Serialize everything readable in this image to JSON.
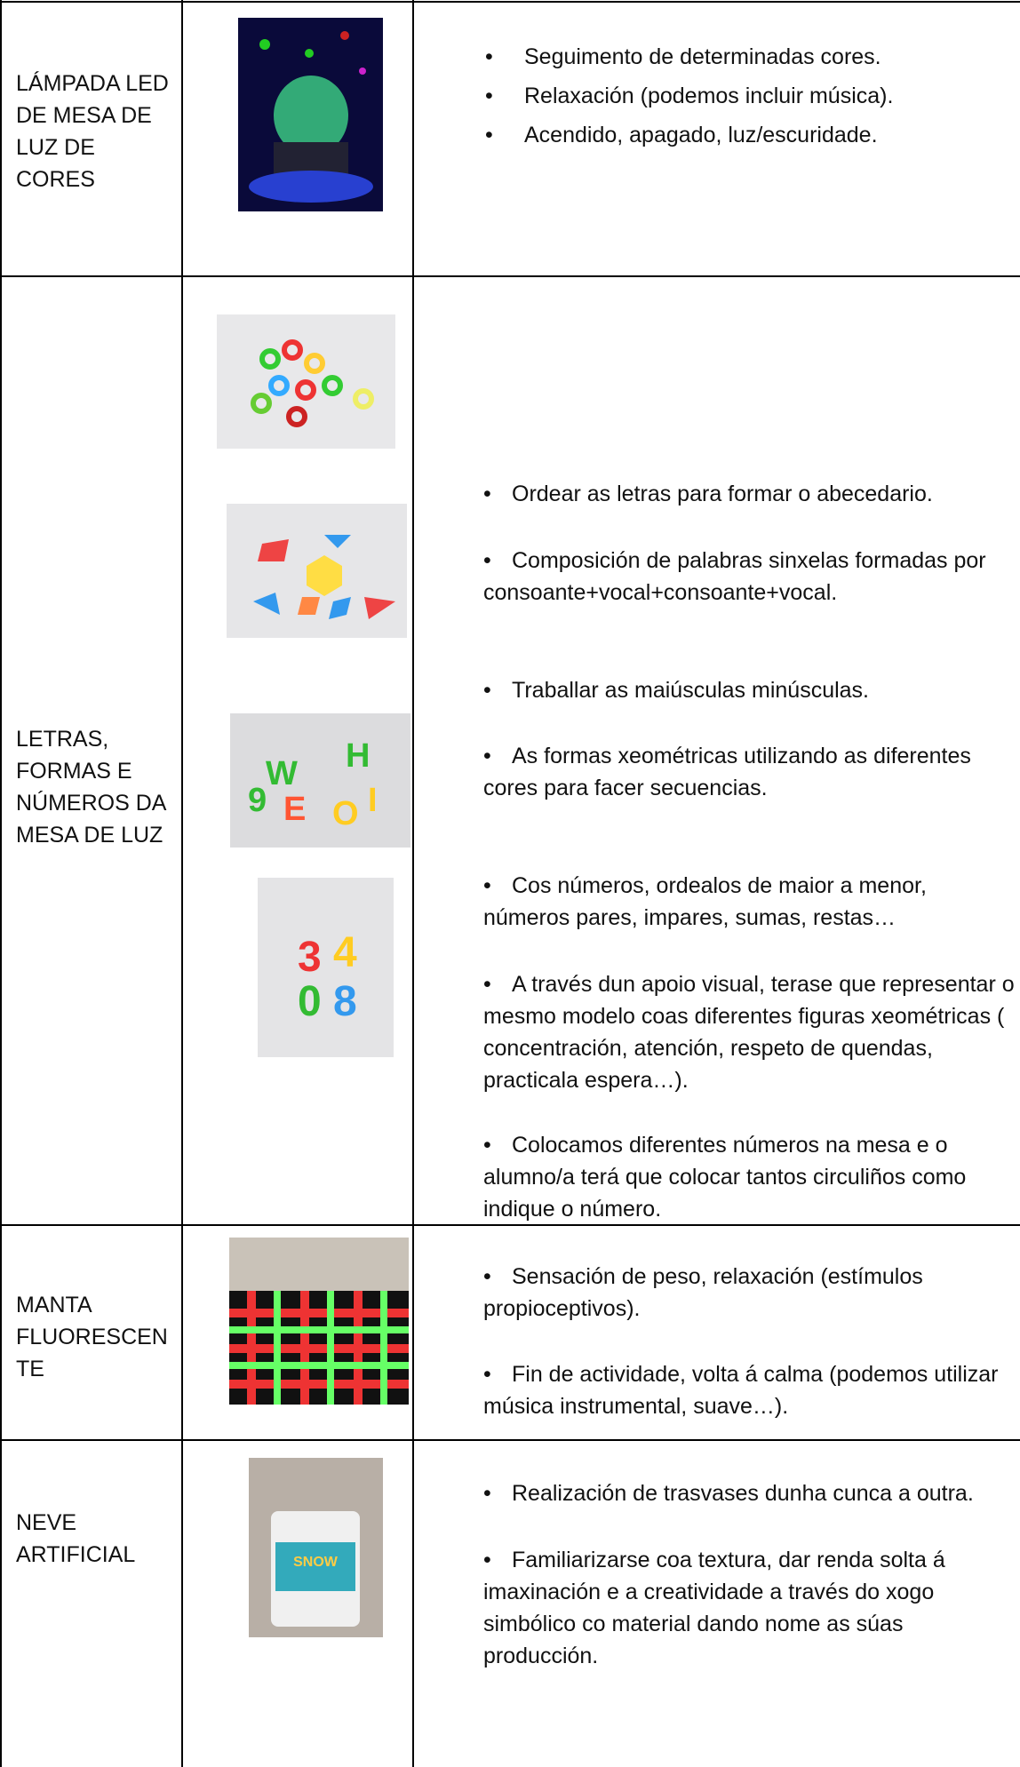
{
  "table": {
    "rows": [
      {
        "name": "LÁMPADA LED DE MESA DE LUZ DE CORES",
        "items": [
          "Seguimento de determinadas cores.",
          "Relaxación (podemos incluir música).",
          "Acendido, apagado, luz/escuridade."
        ]
      },
      {
        "name": "LETRAS, FORMAS E NÚMEROS DA MESA DE LUZ",
        "items": [
          "Ordear as letras para formar o abecedario.",
          "Composición de palabras sinxelas formadas por consoante+vocal+consoante+vocal.",
          "Traballar as maiúsculas minúsculas.",
          "As formas  xeométricas utilizando as diferentes cores para facer secuencias.",
          "Cos números, ordealos de maior a menor, números pares, impares, sumas, restas…",
          "A través dun apoio visual, terase que representar o mesmo modelo coas diferentes figuras xeométricas     ( concentración, atención, respeto de quendas, practicala espera…).",
          "Colocamos diferentes números na mesa e o alumno/a terá que colocar tantos circuliños como indique o número."
        ]
      },
      {
        "name": "MANTA FLUORESCENTE",
        "items": [
          "Sensación de peso, relaxación (estímulos propioceptivos).",
          "Fin de actividade, volta á calma (podemos utilizar música instrumental, suave…)."
        ]
      },
      {
        "name": "NEVE ARTIFICIAL",
        "items": [
          "Realización de trasvases dunha cunca a outra.",
          "Familiarizarse coa textura, dar renda solta á imaxinación e a creatividade a través do xogo simbólico co material dando nome as súas producción."
        ]
      }
    ]
  }
}
